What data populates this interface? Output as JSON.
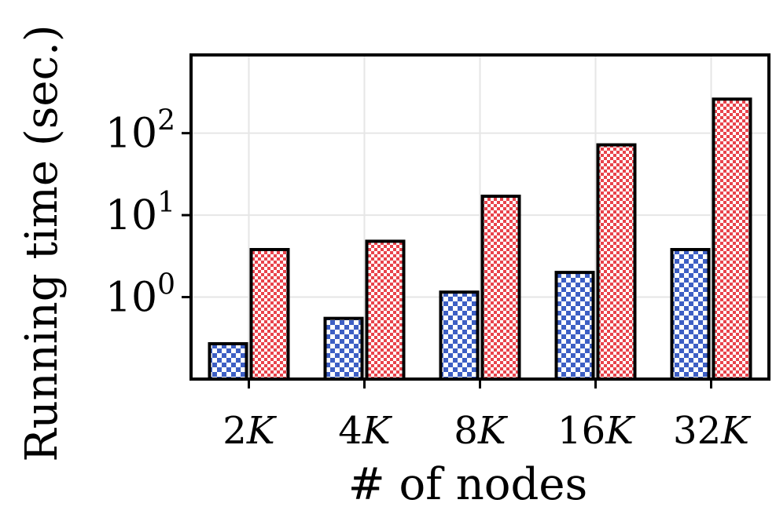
{
  "chart_data": {
    "type": "bar",
    "log_y": true,
    "xlabel": "# of nodes",
    "ylabel": "Running time (sec.)",
    "categories": [
      {
        "num": "2",
        "unit": "K"
      },
      {
        "num": "4",
        "unit": "K"
      },
      {
        "num": "8",
        "unit": "K"
      },
      {
        "num": "16",
        "unit": "K"
      },
      {
        "num": "32",
        "unit": "K"
      }
    ],
    "series": [
      {
        "color": "#3d5fc4",
        "pattern": "checker",
        "values": [
          0.27,
          0.55,
          1.15,
          2.0,
          3.8
        ]
      },
      {
        "color": "#e8434b",
        "pattern": "checker",
        "values": [
          3.8,
          4.8,
          17,
          72,
          260
        ]
      }
    ],
    "yticks": [
      {
        "base": "10",
        "exp": "0",
        "value": 1
      },
      {
        "base": "10",
        "exp": "1",
        "value": 10
      },
      {
        "base": "10",
        "exp": "2",
        "value": 100
      }
    ],
    "ylim": [
      0.1,
      900
    ],
    "grid": true,
    "legend": "none"
  }
}
